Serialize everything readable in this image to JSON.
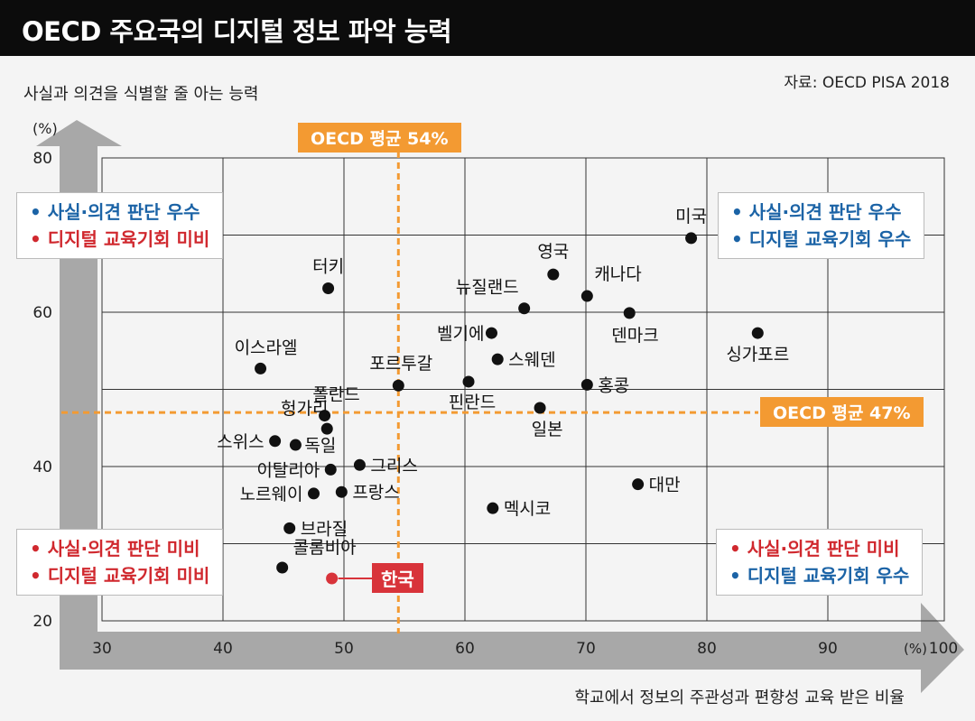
{
  "title": "OECD 주요국의 디지털 정보 파악 능력",
  "source": "자료: OECD PISA 2018",
  "colors": {
    "average_line": "#f39a32",
    "point": "#111111",
    "highlight": "#d8333a",
    "blue_text": "#1b63a6",
    "red_text": "#d0282e"
  },
  "quadrants": {
    "top_left": [
      "• 사실·의견 판단 우수",
      "• 디지털 교육기회 미비"
    ],
    "top_right": [
      "• 사실·의견 판단 우수",
      "• 디지털 교육기회 우수"
    ],
    "bottom_left": [
      "• 사실·의견 판단 미비",
      "• 디지털 교육기회 미비"
    ],
    "bottom_right": [
      "• 사실·의견 판단 미비",
      "• 디지털 교육기회 우수"
    ]
  },
  "chart_data": {
    "type": "scatter",
    "title": "OECD 주요국의 디지털 정보 파악 능력",
    "xlabel": "학교에서 정보의 주관성과 편향성 교육 받은 비율",
    "ylabel": "사실과 의견을 식별할 줄 아는 능력",
    "x_unit": "(%)",
    "y_unit": "(%)",
    "xlim": [
      25,
      100
    ],
    "ylim": [
      20,
      80
    ],
    "x_ticks": [
      30,
      40,
      50,
      60,
      70,
      80,
      90,
      100
    ],
    "y_ticks": [
      20,
      40,
      60,
      80
    ],
    "grid": true,
    "averages": {
      "x": 54.5,
      "x_label": "OECD 평균 54%",
      "y": 47,
      "y_label": "OECD 평균 47%"
    },
    "points": [
      {
        "label": "미국",
        "x": 78.7,
        "y": 69.6
      },
      {
        "label": "영국",
        "x": 67.3,
        "y": 64.9
      },
      {
        "label": "캐나다",
        "x": 70.1,
        "y": 62.1
      },
      {
        "label": "뉴질랜드",
        "x": 64.9,
        "y": 60.5
      },
      {
        "label": "덴마크",
        "x": 73.6,
        "y": 59.9
      },
      {
        "label": "터키",
        "x": 48.7,
        "y": 63.1
      },
      {
        "label": "벨기에",
        "x": 62.2,
        "y": 57.3
      },
      {
        "label": "싱가포르",
        "x": 84.2,
        "y": 57.3
      },
      {
        "label": "스웨덴",
        "x": 62.7,
        "y": 53.9
      },
      {
        "label": "이스라엘",
        "x": 43.1,
        "y": 52.7
      },
      {
        "label": "포르투갈",
        "x": 54.5,
        "y": 50.5
      },
      {
        "label": "핀란드",
        "x": 60.3,
        "y": 51.0
      },
      {
        "label": "홍콩",
        "x": 70.1,
        "y": 50.6
      },
      {
        "label": "일본",
        "x": 66.2,
        "y": 47.6
      },
      {
        "label": "폴란드",
        "x": 48.4,
        "y": 46.6
      },
      {
        "label": "헝가리",
        "x": 48.6,
        "y": 44.9
      },
      {
        "label": "스위스",
        "x": 44.3,
        "y": 43.3
      },
      {
        "label": "독일",
        "x": 46.0,
        "y": 42.8
      },
      {
        "label": "그리스",
        "x": 51.3,
        "y": 40.2
      },
      {
        "label": "이탈리아",
        "x": 48.9,
        "y": 39.6
      },
      {
        "label": "노르웨이",
        "x": 47.5,
        "y": 36.5
      },
      {
        "label": "프랑스",
        "x": 49.8,
        "y": 36.7
      },
      {
        "label": "대만",
        "x": 74.3,
        "y": 37.7
      },
      {
        "label": "멕시코",
        "x": 62.3,
        "y": 34.6
      },
      {
        "label": "브라질",
        "x": 45.5,
        "y": 32.0
      },
      {
        "label": "콜롬비아",
        "x": 44.9,
        "y": 26.9
      },
      {
        "label": "한국",
        "x": 49.0,
        "y": 25.5,
        "highlight": true
      }
    ]
  }
}
